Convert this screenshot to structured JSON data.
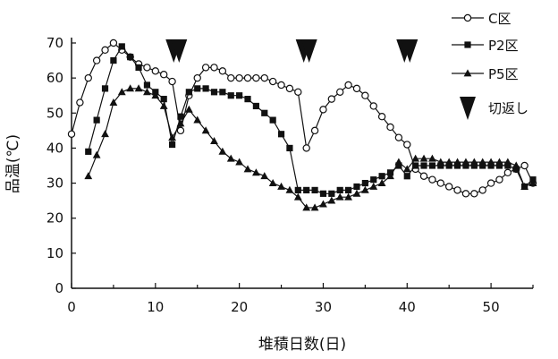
{
  "chart_data": {
    "type": "line",
    "xlabel": "堆積日数(日)",
    "ylabel": "品温(℃)",
    "xlim": [
      0,
      55
    ],
    "ylim": [
      0,
      70
    ],
    "xticks": [
      0,
      10,
      20,
      30,
      40,
      50
    ],
    "yticks": [
      0,
      10,
      20,
      30,
      40,
      50,
      60,
      70
    ],
    "grid": false,
    "legend_position": "top-right",
    "series": [
      {
        "name": "C区",
        "marker": "open-circle",
        "x": [
          0,
          1,
          2,
          3,
          4,
          5,
          6,
          7,
          8,
          9,
          10,
          11,
          12,
          13,
          14,
          15,
          16,
          17,
          18,
          19,
          20,
          21,
          22,
          23,
          24,
          25,
          26,
          27,
          28,
          29,
          30,
          31,
          32,
          33,
          34,
          35,
          36,
          37,
          38,
          39,
          40,
          41,
          42,
          43,
          44,
          45,
          46,
          47,
          48,
          49,
          50,
          51,
          52,
          53,
          54,
          55
        ],
        "y": [
          44,
          53,
          60,
          65,
          68,
          70,
          68,
          66,
          64,
          63,
          62,
          61,
          59,
          45,
          55,
          60,
          63,
          63,
          62,
          60,
          60,
          60,
          60,
          60,
          59,
          58,
          57,
          56,
          40,
          45,
          51,
          54,
          56,
          58,
          57,
          55,
          52,
          49,
          46,
          43,
          41,
          34,
          32,
          31,
          30,
          29,
          28,
          27,
          27,
          28,
          30,
          31,
          33,
          34,
          35,
          30
        ]
      },
      {
        "name": "P2区",
        "marker": "filled-square",
        "x": [
          2,
          3,
          4,
          5,
          6,
          7,
          8,
          9,
          10,
          11,
          12,
          13,
          14,
          15,
          16,
          17,
          18,
          19,
          20,
          21,
          22,
          23,
          24,
          25,
          26,
          27,
          28,
          29,
          30,
          31,
          32,
          33,
          34,
          35,
          36,
          37,
          38,
          39,
          40,
          41,
          42,
          43,
          44,
          45,
          46,
          47,
          48,
          49,
          50,
          51,
          52,
          53,
          54,
          55
        ],
        "y": [
          39,
          48,
          57,
          65,
          69,
          66,
          63,
          58,
          56,
          54,
          41,
          49,
          56,
          57,
          57,
          56,
          56,
          55,
          55,
          54,
          52,
          50,
          48,
          44,
          40,
          28,
          28,
          28,
          27,
          27,
          28,
          28,
          29,
          30,
          31,
          32,
          33,
          35,
          32,
          35,
          35,
          35,
          35,
          35,
          35,
          35,
          35,
          35,
          35,
          35,
          35,
          34,
          29,
          31
        ]
      },
      {
        "name": "P5区",
        "marker": "filled-triangle",
        "x": [
          2,
          3,
          4,
          5,
          6,
          7,
          8,
          9,
          10,
          11,
          12,
          13,
          14,
          15,
          16,
          17,
          18,
          19,
          20,
          21,
          22,
          23,
          24,
          25,
          26,
          27,
          28,
          29,
          30,
          31,
          32,
          33,
          34,
          35,
          36,
          37,
          38,
          39,
          40,
          41,
          42,
          43,
          44,
          45,
          46,
          47,
          48,
          49,
          50,
          51,
          52,
          53,
          54,
          55
        ],
        "y": [
          32,
          38,
          44,
          53,
          56,
          57,
          57,
          56,
          55,
          52,
          43,
          47,
          51,
          48,
          45,
          42,
          39,
          37,
          36,
          34,
          33,
          32,
          30,
          29,
          28,
          26,
          23,
          23,
          24,
          25,
          26,
          26,
          27,
          28,
          29,
          30,
          32,
          36,
          34,
          37,
          37,
          37,
          36,
          36,
          36,
          36,
          36,
          36,
          36,
          36,
          36,
          35,
          29,
          30
        ]
      }
    ],
    "turning_marker": {
      "name": "切返し",
      "x": [
        12.5,
        28,
        40
      ]
    }
  }
}
